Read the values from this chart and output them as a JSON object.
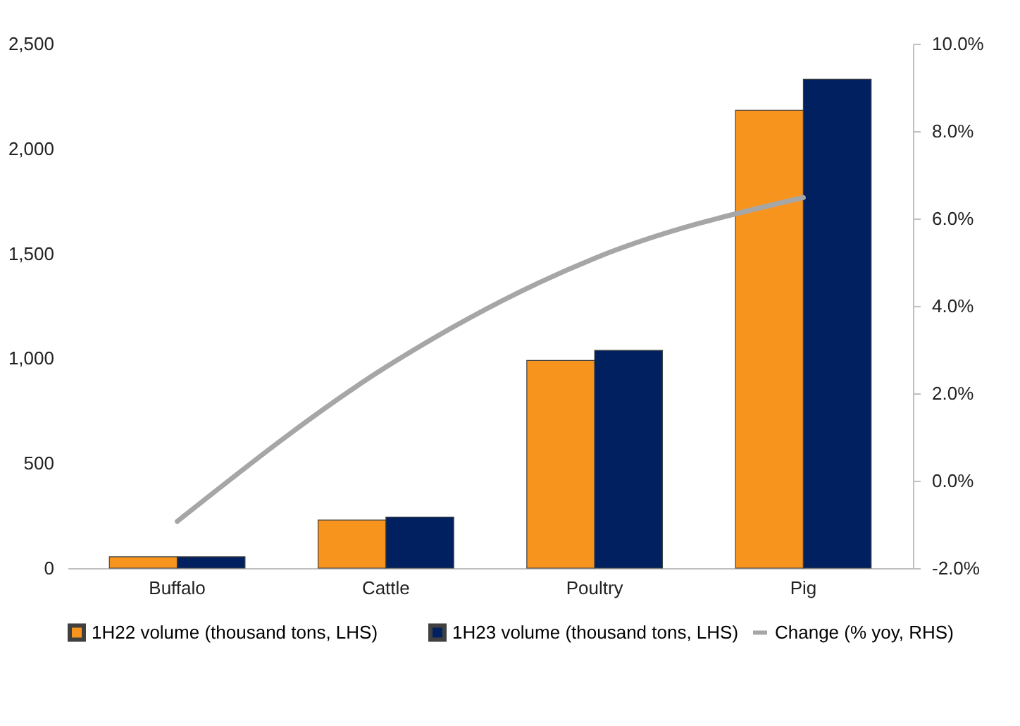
{
  "chart_data": {
    "type": "bar",
    "categories": [
      "Buffalo",
      "Cattle",
      "Poultry",
      "Pig"
    ],
    "series": [
      {
        "name": "1H22 volume (thousand tons, LHS)",
        "color": "#f7941d",
        "values": [
          54,
          229,
          990,
          2183
        ]
      },
      {
        "name": "1H23 volume (thousand tons, LHS)",
        "color": "#002060",
        "values": [
          54,
          243,
          1038,
          2331
        ]
      },
      {
        "name": "Change (% yoy, RHS)",
        "type": "line",
        "axis": "y2",
        "color": "#a6a6a6",
        "values": [
          -0.93,
          2.6,
          5.09,
          6.48
        ]
      }
    ],
    "ylim": [
      0,
      2500
    ],
    "yticks": [
      0,
      500,
      {
        "value": 1000,
        "label": "1,000"
      },
      {
        "value": 1500,
        "label": "1,500"
      },
      {
        "value": 2000,
        "label": "2,000"
      },
      {
        "value": 2500,
        "label": "2,500"
      }
    ],
    "y2lim": [
      -2,
      10
    ],
    "y2ticks": [
      {
        "value": -2,
        "label": "-2.0%"
      },
      {
        "value": 0,
        "label": "0.0%"
      },
      {
        "value": 2,
        "label": "2.0%"
      },
      {
        "value": 4,
        "label": "4.0%"
      },
      {
        "value": 6,
        "label": "6.0%"
      },
      {
        "value": 8,
        "label": "8.0%"
      },
      {
        "value": 10,
        "label": "10.0%"
      }
    ],
    "grid": false,
    "legend": "bottom",
    "marker": "none",
    "line_style": "solid"
  }
}
